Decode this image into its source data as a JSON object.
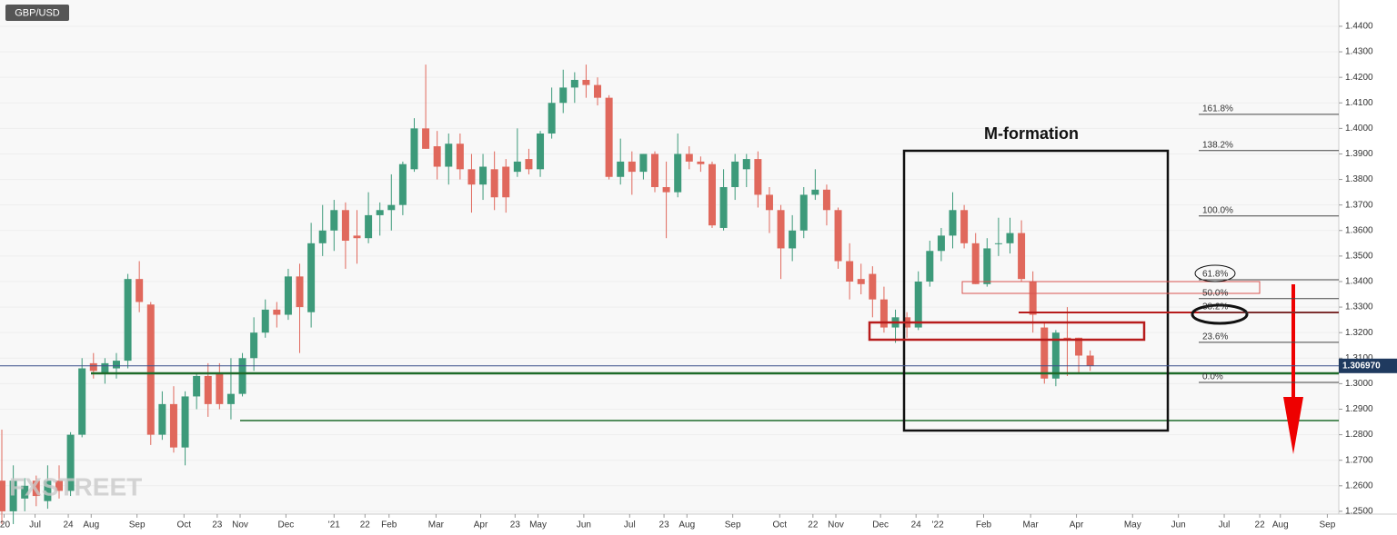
{
  "chart_data": {
    "type": "candlestick",
    "symbol": "GBP/USD",
    "watermark": "FXSTREET",
    "annotation": "M-formation",
    "up_color": "#3d9a7a",
    "down_color": "#e0685c",
    "x": [
      0,
      1,
      2,
      3,
      4,
      5,
      6,
      7,
      8,
      9,
      10,
      11,
      12,
      13,
      14,
      15,
      16,
      17,
      18,
      19,
      20,
      21,
      22,
      23,
      24,
      25,
      26,
      27,
      28,
      29,
      30,
      31,
      32,
      33,
      34,
      35,
      36,
      37,
      38,
      39,
      40,
      41,
      42,
      43,
      44,
      45,
      46,
      47,
      48,
      49,
      50,
      51,
      52,
      53,
      54,
      55,
      56,
      57,
      58,
      59,
      60,
      61,
      62,
      63,
      64,
      65,
      66,
      67,
      68,
      69,
      70,
      71,
      72,
      73,
      74,
      75,
      76,
      77,
      78,
      79,
      80,
      81,
      82,
      83,
      84,
      85,
      86,
      87,
      88,
      89,
      90,
      91,
      92,
      93,
      94,
      95
    ],
    "open": [
      1.262,
      1.25,
      1.255,
      1.262,
      1.254,
      1.262,
      1.258,
      1.28,
      1.308,
      1.304,
      1.306,
      1.309,
      1.341,
      1.331,
      1.28,
      1.292,
      1.275,
      1.295,
      1.303,
      1.304,
      1.292,
      1.296,
      1.31,
      1.32,
      1.329,
      1.327,
      1.342,
      1.328,
      1.355,
      1.36,
      1.368,
      1.358,
      1.357,
      1.366,
      1.368,
      1.37,
      1.384,
      1.4,
      1.393,
      1.385,
      1.394,
      1.384,
      1.378,
      1.384,
      1.385,
      1.383,
      1.388,
      1.384,
      1.398,
      1.41,
      1.416,
      1.419,
      1.417,
      1.412,
      1.381,
      1.387,
      1.383,
      1.39,
      1.377,
      1.375,
      1.39,
      1.387,
      1.386,
      1.361,
      1.377,
      1.384,
      1.388,
      1.374,
      1.368,
      1.353,
      1.36,
      1.374,
      1.376,
      1.368,
      1.348,
      1.341,
      1.343,
      1.333,
      1.322,
      1.326,
      1.322,
      1.34,
      1.352,
      1.358,
      1.368,
      1.355,
      1.339,
      1.355,
      1.355,
      1.359,
      1.34,
      1.322,
      1.302,
      1.318,
      1.318,
      1.311
    ],
    "high": [
      1.282,
      1.268,
      1.263,
      1.264,
      1.268,
      1.268,
      1.281,
      1.31,
      1.312,
      1.31,
      1.312,
      1.343,
      1.348,
      1.332,
      1.297,
      1.299,
      1.297,
      1.304,
      1.308,
      1.308,
      1.31,
      1.312,
      1.326,
      1.333,
      1.332,
      1.345,
      1.347,
      1.363,
      1.37,
      1.372,
      1.371,
      1.368,
      1.375,
      1.371,
      1.382,
      1.387,
      1.404,
      1.425,
      1.399,
      1.398,
      1.398,
      1.39,
      1.39,
      1.391,
      1.388,
      1.4,
      1.392,
      1.399,
      1.416,
      1.423,
      1.422,
      1.425,
      1.42,
      1.413,
      1.396,
      1.391,
      1.39,
      1.391,
      1.387,
      1.398,
      1.393,
      1.389,
      1.387,
      1.384,
      1.39,
      1.39,
      1.391,
      1.377,
      1.37,
      1.366,
      1.377,
      1.384,
      1.378,
      1.369,
      1.355,
      1.347,
      1.346,
      1.338,
      1.329,
      1.328,
      1.344,
      1.356,
      1.361,
      1.375,
      1.37,
      1.359,
      1.357,
      1.365,
      1.365,
      1.364,
      1.344,
      1.324,
      1.321,
      1.33,
      1.318,
      1.313
    ],
    "low": [
      1.245,
      1.245,
      1.25,
      1.252,
      1.251,
      1.255,
      1.256,
      1.279,
      1.302,
      1.3,
      1.302,
      1.306,
      1.328,
      1.276,
      1.278,
      1.273,
      1.268,
      1.29,
      1.287,
      1.29,
      1.286,
      1.295,
      1.305,
      1.318,
      1.322,
      1.325,
      1.312,
      1.322,
      1.35,
      1.352,
      1.345,
      1.347,
      1.355,
      1.358,
      1.36,
      1.366,
      1.383,
      1.392,
      1.38,
      1.378,
      1.38,
      1.367,
      1.372,
      1.368,
      1.367,
      1.381,
      1.382,
      1.381,
      1.396,
      1.406,
      1.41,
      1.412,
      1.409,
      1.38,
      1.378,
      1.374,
      1.38,
      1.375,
      1.357,
      1.373,
      1.384,
      1.383,
      1.361,
      1.36,
      1.372,
      1.377,
      1.369,
      1.359,
      1.341,
      1.348,
      1.357,
      1.372,
      1.362,
      1.345,
      1.333,
      1.335,
      1.326,
      1.32,
      1.316,
      1.318,
      1.321,
      1.338,
      1.348,
      1.353,
      1.353,
      1.339,
      1.338,
      1.35,
      1.351,
      1.34,
      1.32,
      1.3,
      1.299,
      1.303,
      1.304,
      1.305
    ],
    "close": [
      1.25,
      1.262,
      1.26,
      1.256,
      1.262,
      1.258,
      1.28,
      1.306,
      1.305,
      1.308,
      1.309,
      1.341,
      1.332,
      1.28,
      1.292,
      1.275,
      1.295,
      1.303,
      1.292,
      1.292,
      1.296,
      1.31,
      1.32,
      1.329,
      1.327,
      1.342,
      1.33,
      1.355,
      1.36,
      1.368,
      1.356,
      1.357,
      1.366,
      1.368,
      1.37,
      1.386,
      1.4,
      1.392,
      1.385,
      1.394,
      1.384,
      1.378,
      1.385,
      1.373,
      1.373,
      1.387,
      1.384,
      1.398,
      1.41,
      1.416,
      1.419,
      1.417,
      1.412,
      1.381,
      1.387,
      1.383,
      1.39,
      1.377,
      1.375,
      1.39,
      1.387,
      1.386,
      1.362,
      1.377,
      1.387,
      1.388,
      1.374,
      1.368,
      1.353,
      1.36,
      1.374,
      1.376,
      1.368,
      1.348,
      1.34,
      1.339,
      1.333,
      1.322,
      1.326,
      1.322,
      1.34,
      1.352,
      1.358,
      1.368,
      1.355,
      1.339,
      1.353,
      1.355,
      1.359,
      1.341,
      1.327,
      1.302,
      1.32,
      1.317,
      1.311,
      1.307
    ],
    "xlim": [
      -0.16,
      116.7
    ],
    "xticks": [
      {
        "value": 0.2,
        "label": "'20"
      },
      {
        "value": 2.9,
        "label": "Jul"
      },
      {
        "value": 5.8,
        "label": "24"
      },
      {
        "value": 7.8,
        "label": "Aug"
      },
      {
        "value": 11.8,
        "label": "Sep"
      },
      {
        "value": 15.9,
        "label": "Oct"
      },
      {
        "value": 18.8,
        "label": "23"
      },
      {
        "value": 20.8,
        "label": "Nov"
      },
      {
        "value": 24.8,
        "label": "Dec"
      },
      {
        "value": 29.0,
        "label": "'21"
      },
      {
        "value": 31.7,
        "label": "22"
      },
      {
        "value": 33.8,
        "label": "Feb"
      },
      {
        "value": 37.9,
        "label": "Mar"
      },
      {
        "value": 41.8,
        "label": "Apr"
      },
      {
        "value": 44.8,
        "label": "23"
      },
      {
        "value": 46.8,
        "label": "May"
      },
      {
        "value": 50.8,
        "label": "Jun"
      },
      {
        "value": 54.8,
        "label": "Jul"
      },
      {
        "value": 57.8,
        "label": "23"
      },
      {
        "value": 59.8,
        "label": "Aug"
      },
      {
        "value": 63.8,
        "label": "Sep"
      },
      {
        "value": 67.9,
        "label": "Oct"
      },
      {
        "value": 70.8,
        "label": "22"
      },
      {
        "value": 72.8,
        "label": "Nov"
      },
      {
        "value": 76.7,
        "label": "Dec"
      },
      {
        "value": 79.8,
        "label": "24"
      },
      {
        "value": 81.7,
        "label": "'22"
      },
      {
        "value": 85.7,
        "label": "Feb"
      },
      {
        "value": 89.8,
        "label": "Mar"
      },
      {
        "value": 93.8,
        "label": "Apr"
      },
      {
        "value": 98.7,
        "label": "May"
      },
      {
        "value": 102.7,
        "label": "Jun"
      },
      {
        "value": 106.7,
        "label": "Jul"
      },
      {
        "value": 109.8,
        "label": "22"
      },
      {
        "value": 111.6,
        "label": "Aug"
      },
      {
        "value": 115.7,
        "label": "Sep"
      }
    ],
    "ylim": [
      1.2489,
      1.4503
    ],
    "yticks": [
      {
        "value": 1.25,
        "label": "1.2500"
      },
      {
        "value": 1.26,
        "label": "1.2600"
      },
      {
        "value": 1.27,
        "label": "1.2700"
      },
      {
        "value": 1.28,
        "label": "1.2800"
      },
      {
        "value": 1.29,
        "label": "1.2900"
      },
      {
        "value": 1.3,
        "label": "1.3000"
      },
      {
        "value": 1.31,
        "label": "1.3100"
      },
      {
        "value": 1.32,
        "label": "1.3200"
      },
      {
        "value": 1.33,
        "label": "1.3300"
      },
      {
        "value": 1.34,
        "label": "1.3400"
      },
      {
        "value": 1.35,
        "label": "1.3500"
      },
      {
        "value": 1.36,
        "label": "1.3600"
      },
      {
        "value": 1.37,
        "label": "1.3700"
      },
      {
        "value": 1.38,
        "label": "1.3800"
      },
      {
        "value": 1.39,
        "label": "1.3900"
      },
      {
        "value": 1.4,
        "label": "1.4000"
      },
      {
        "value": 1.41,
        "label": "1.4100"
      },
      {
        "value": 1.42,
        "label": "1.4200"
      },
      {
        "value": 1.43,
        "label": "1.4300"
      },
      {
        "value": 1.44,
        "label": "1.4400"
      }
    ],
    "last_price": {
      "value": 1.30697,
      "label": "1.306970"
    },
    "fib_levels": [
      {
        "value": 1.4055,
        "label": "161.8%"
      },
      {
        "value": 1.3913,
        "label": "138.2%"
      },
      {
        "value": 1.3657,
        "label": "100.0%"
      },
      {
        "value": 1.3407,
        "label": "61.8%"
      },
      {
        "value": 1.3333,
        "label": "50.0%"
      },
      {
        "value": 1.3279,
        "label": "38.2%"
      },
      {
        "value": 1.3162,
        "label": "23.6%"
      },
      {
        "value": 1.3005,
        "label": "0.0%"
      }
    ]
  }
}
